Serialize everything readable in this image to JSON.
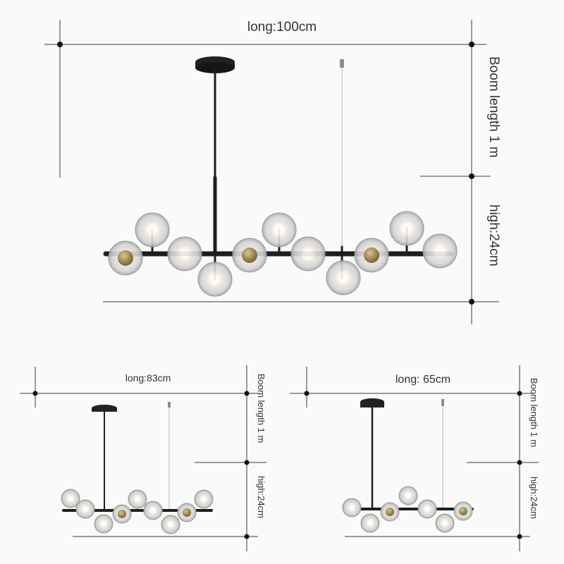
{
  "main": {
    "width_label": "long:100cm",
    "boom_label": "Boom length 1 m",
    "height_label": "high:24cm"
  },
  "variant_83": {
    "width_label": "long:83cm",
    "boom_label": "Boom length 1 m",
    "height_label": "high:24cm"
  },
  "variant_65": {
    "width_label": "long: 65cm",
    "boom_label": "Boom length 1 m",
    "height_label": "high:24cm"
  },
  "colors": {
    "background": "#fafafa",
    "metal": "#1e1e1e",
    "brass": "#b8a06a",
    "glass": "#d9d9d9"
  }
}
